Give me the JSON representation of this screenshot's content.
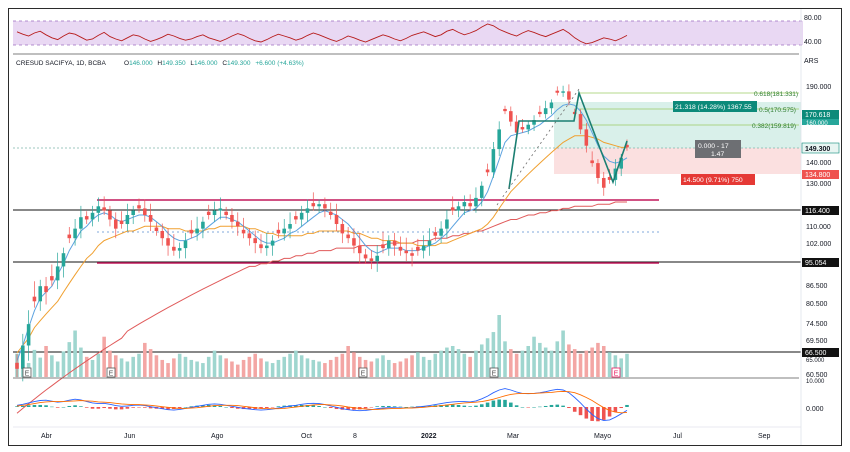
{
  "header": {
    "symbol": "CRESUD SACIFYA, 1D, BCBA",
    "open_label": "O",
    "open": "146.000",
    "high_label": "H",
    "high": "149.350",
    "low_label": "L",
    "low": "146.000",
    "close_label": "C",
    "close": "149.300",
    "change": "+6.600 (+4.63%)",
    "currency": "ARS"
  },
  "chart_data": {
    "type": "candlestick",
    "x_axis_labels": [
      "Abr",
      "Jun",
      "Ago",
      "Oct",
      "8",
      "2022",
      "Mar",
      "Mayo",
      "Jul",
      "Sep"
    ],
    "price_axis_labels": [
      "190.000",
      "170.618",
      "160.000",
      "149.300",
      "140.000",
      "134.800",
      "130.000",
      "116.400",
      "110.000",
      "102.000",
      "95.054",
      "86.500",
      "80.500",
      "74.500",
      "69.500",
      "66.500",
      "65.000",
      "60.500",
      "10.000",
      "0.000"
    ],
    "rsi": {
      "upper": "80.00",
      "lower": "40.00"
    },
    "last_price": "149.300",
    "horizontal_levels": [
      "116.400",
      "95.054",
      "66.500"
    ],
    "fibonacci": [
      {
        "label": "0.618(181.331)"
      },
      {
        "label": "0.5(170.575)"
      },
      {
        "label": "0.382(159.819)"
      }
    ],
    "long_position": {
      "target_label": "21.318 (14.28%) 1367.55",
      "ratio_line1": "0.000 - 17",
      "ratio_line2": "1.47",
      "stop_label": "14.500 (9.71%) 750",
      "target_price": "170.618",
      "stop_price": "134.800"
    },
    "price_path": [
      62,
      68,
      74,
      81,
      86,
      84,
      88,
      93,
      98,
      104,
      108,
      113,
      112,
      115,
      118,
      116,
      112,
      108,
      110,
      114,
      116,
      117,
      114,
      111,
      107,
      104,
      101,
      99,
      100,
      103,
      106,
      108,
      111,
      114,
      116,
      117,
      114,
      111,
      109,
      106,
      104,
      102,
      100,
      101,
      103,
      106,
      108,
      110,
      112,
      115,
      117,
      118,
      119,
      117,
      114,
      110,
      106,
      104,
      101,
      98,
      96,
      95,
      97,
      100,
      103,
      101,
      99,
      98,
      97,
      99,
      101,
      103,
      105,
      108,
      112,
      116,
      118,
      120,
      118,
      122,
      128,
      135,
      148,
      160,
      172,
      165,
      158,
      160,
      163,
      166,
      170,
      174,
      178,
      185,
      186,
      180,
      170,
      160,
      150,
      140,
      132,
      127,
      131,
      137,
      143,
      149
    ],
    "ema_fast": [
      64,
      68,
      73,
      78,
      82,
      84,
      86,
      90,
      94,
      99,
      103,
      107,
      109,
      112,
      114,
      115,
      114,
      112,
      111,
      112,
      113,
      114,
      114,
      113,
      111,
      109,
      106,
      104,
      103,
      103,
      104,
      105,
      107,
      109,
      111,
      113,
      113,
      112,
      111,
      109,
      107,
      105,
      103,
      102,
      102,
      103,
      104,
      106,
      107,
      109,
      111,
      113,
      115,
      116,
      115,
      114,
      112,
      110,
      107,
      104,
      101,
      99,
      98,
      99,
      100,
      100,
      100,
      99,
      99,
      99,
      100,
      101,
      102,
      104,
      106,
      109,
      112,
      115,
      116,
      117,
      120,
      125,
      133,
      142,
      152,
      156,
      157,
      158,
      159,
      161,
      163,
      166,
      169,
      173,
      176,
      177,
      176,
      172,
      166,
      158,
      150,
      144,
      141,
      140,
      141,
      143
    ],
    "ema_slow": [
      66,
      68,
      70,
      73,
      75,
      77,
      79,
      81,
      84,
      87,
      90,
      93,
      96,
      98,
      101,
      103,
      104,
      105,
      106,
      107,
      107,
      108,
      109,
      109,
      109,
      109,
      108,
      108,
      108,
      107,
      107,
      107,
      107,
      108,
      108,
      109,
      109,
      109,
      109,
      109,
      108,
      108,
      107,
      106,
      106,
      105,
      105,
      105,
      105,
      105,
      106,
      106,
      107,
      107,
      107,
      107,
      107,
      107,
      106,
      106,
      105,
      104,
      104,
      103,
      103,
      103,
      102,
      102,
      102,
      101,
      101,
      101,
      101,
      102,
      102,
      103,
      104,
      105,
      106,
      107,
      108,
      110,
      113,
      117,
      121,
      125,
      128,
      131,
      134,
      137,
      140,
      143,
      146,
      149,
      152,
      154,
      156,
      156,
      156,
      155,
      154,
      152,
      151,
      150,
      149,
      149
    ],
    "sma_long": [
      52,
      53,
      54,
      55,
      56,
      57,
      58,
      59,
      60,
      61,
      62,
      63,
      64,
      65,
      66,
      67,
      68,
      69,
      70,
      72,
      73,
      74,
      75,
      76,
      77,
      78,
      79,
      80,
      81,
      82,
      83,
      84,
      85,
      86,
      87,
      88,
      89,
      90,
      91,
      92,
      93,
      93,
      94,
      94,
      95,
      95,
      96,
      96,
      97,
      97,
      98,
      98,
      99,
      99,
      99,
      100,
      100,
      100,
      100,
      101,
      101,
      101,
      101,
      101,
      102,
      102,
      102,
      102,
      102,
      103,
      103,
      103,
      104,
      104,
      104,
      105,
      105,
      106,
      106,
      107,
      107,
      108,
      109,
      110,
      111,
      112,
      112,
      113,
      114,
      114,
      115,
      115,
      116,
      116,
      117,
      117,
      118,
      118,
      118,
      118,
      119,
      119,
      119,
      120,
      120,
      120
    ],
    "volume": [
      30,
      22,
      18,
      35,
      25,
      40,
      28,
      20,
      33,
      45,
      60,
      38,
      26,
      22,
      30,
      52,
      34,
      28,
      24,
      20,
      26,
      30,
      44,
      36,
      28,
      22,
      18,
      24,
      30,
      26,
      22,
      20,
      18,
      26,
      34,
      28,
      24,
      20,
      16,
      22,
      26,
      30,
      24,
      20,
      18,
      22,
      26,
      30,
      34,
      28,
      24,
      22,
      20,
      18,
      22,
      26,
      30,
      40,
      32,
      26,
      22,
      20,
      24,
      28,
      22,
      18,
      20,
      24,
      28,
      32,
      26,
      22,
      30,
      34,
      38,
      40,
      36,
      30,
      26,
      34,
      42,
      50,
      58,
      80,
      46,
      36,
      30,
      34,
      40,
      52,
      44,
      38,
      34,
      46,
      60,
      42,
      36,
      30,
      34,
      38,
      44,
      40,
      32,
      28,
      24,
      30
    ],
    "rsi_values": [
      62,
      58,
      55,
      60,
      63,
      57,
      52,
      49,
      55,
      60,
      58,
      53,
      48,
      50,
      56,
      61,
      54,
      50,
      47,
      52,
      57,
      55,
      50,
      46,
      49,
      53,
      58,
      55,
      51,
      48,
      50,
      54,
      57,
      52,
      49,
      46,
      50,
      55,
      59,
      56,
      51,
      47,
      45,
      49,
      54,
      58,
      55,
      52,
      48,
      51,
      56,
      60,
      57,
      53,
      49,
      46,
      50,
      55,
      52,
      48,
      45,
      49,
      53,
      57,
      54,
      50,
      47,
      51,
      56,
      59,
      62,
      58,
      54,
      57,
      63,
      66,
      61,
      57,
      60,
      64,
      70,
      75,
      72,
      66,
      62,
      58,
      55,
      60,
      64,
      61,
      57,
      54,
      58,
      62,
      66,
      60,
      52,
      46,
      42,
      44,
      48,
      52,
      50,
      47,
      51,
      56
    ],
    "macd": [
      0.5,
      0.8,
      1.2,
      1.6,
      1.9,
      2.0,
      1.7,
      1.4,
      1.6,
      2.0,
      2.3,
      2.1,
      1.6,
      1.2,
      1.0,
      1.1,
      0.8,
      0.4,
      0.2,
      0.3,
      0.5,
      0.6,
      0.4,
      0.1,
      -0.2,
      -0.5,
      -0.8,
      -0.9,
      -0.7,
      -0.4,
      -0.1,
      0.2,
      0.5,
      0.8,
      0.9,
      0.8,
      0.5,
      0.2,
      -0.1,
      -0.4,
      -0.6,
      -0.8,
      -0.9,
      -0.8,
      -0.6,
      -0.3,
      0.0,
      0.3,
      0.5,
      0.8,
      1.0,
      1.1,
      1.0,
      0.7,
      0.3,
      -0.1,
      -0.5,
      -0.8,
      -1.0,
      -1.1,
      -1.0,
      -0.8,
      -0.5,
      -0.3,
      -0.2,
      -0.2,
      -0.3,
      -0.3,
      -0.2,
      0.0,
      0.2,
      0.4,
      0.7,
      1.0,
      1.3,
      1.5,
      1.6,
      1.6,
      1.5,
      1.8,
      2.4,
      3.2,
      4.2,
      5.0,
      5.4,
      5.0,
      4.4,
      4.0,
      3.9,
      4.0,
      4.2,
      4.5,
      4.9,
      5.2,
      5.0,
      4.2,
      2.8,
      1.2,
      -0.6,
      -2.2,
      -3.4,
      -4.0,
      -3.8,
      -3.0,
      -2.0,
      -1.0
    ],
    "macd_signal": [
      0.3,
      0.5,
      0.7,
      1.0,
      1.3,
      1.5,
      1.6,
      1.6,
      1.6,
      1.7,
      1.8,
      1.9,
      1.8,
      1.7,
      1.5,
      1.4,
      1.3,
      1.1,
      0.9,
      0.8,
      0.7,
      0.7,
      0.6,
      0.5,
      0.3,
      0.1,
      -0.1,
      -0.3,
      -0.4,
      -0.4,
      -0.3,
      -0.2,
      0.0,
      0.2,
      0.4,
      0.5,
      0.5,
      0.5,
      0.4,
      0.2,
      0.0,
      -0.2,
      -0.4,
      -0.5,
      -0.5,
      -0.5,
      -0.4,
      -0.2,
      0.0,
      0.2,
      0.4,
      0.6,
      0.7,
      0.7,
      0.6,
      0.5,
      0.3,
      0.0,
      -0.2,
      -0.4,
      -0.6,
      -0.7,
      -0.7,
      -0.6,
      -0.5,
      -0.4,
      -0.4,
      -0.3,
      -0.3,
      -0.2,
      -0.1,
      0.1,
      0.2,
      0.4,
      0.6,
      0.8,
      1.0,
      1.2,
      1.3,
      1.4,
      1.6,
      1.9,
      2.3,
      2.8,
      3.3,
      3.7,
      3.9,
      4.0,
      4.0,
      4.0,
      4.1,
      4.2,
      4.3,
      4.5,
      4.6,
      4.5,
      4.2,
      3.6,
      2.8,
      1.9,
      0.8,
      -0.2,
      -1.0,
      -1.5,
      -1.7,
      -1.6
    ],
    "event_markers": [
      "E",
      "E",
      "E",
      "E",
      "E",
      "E",
      "E"
    ]
  },
  "colors": {
    "up": "#26a69a",
    "down": "#ef5350",
    "rsi_line": "#b71c1c",
    "rsi_band": "#e9d8f3",
    "ema_fast": "#5da3e0",
    "ema_slow": "#f0a030",
    "sma_long": "#e05a5a",
    "magenta_line": "#c2185b",
    "fib_teal": "#0c8a7a",
    "target_zone": "#d9f0ea",
    "stop_zone": "#fbe0e0",
    "label_dark": "#263238",
    "axis_text": "#131722"
  }
}
